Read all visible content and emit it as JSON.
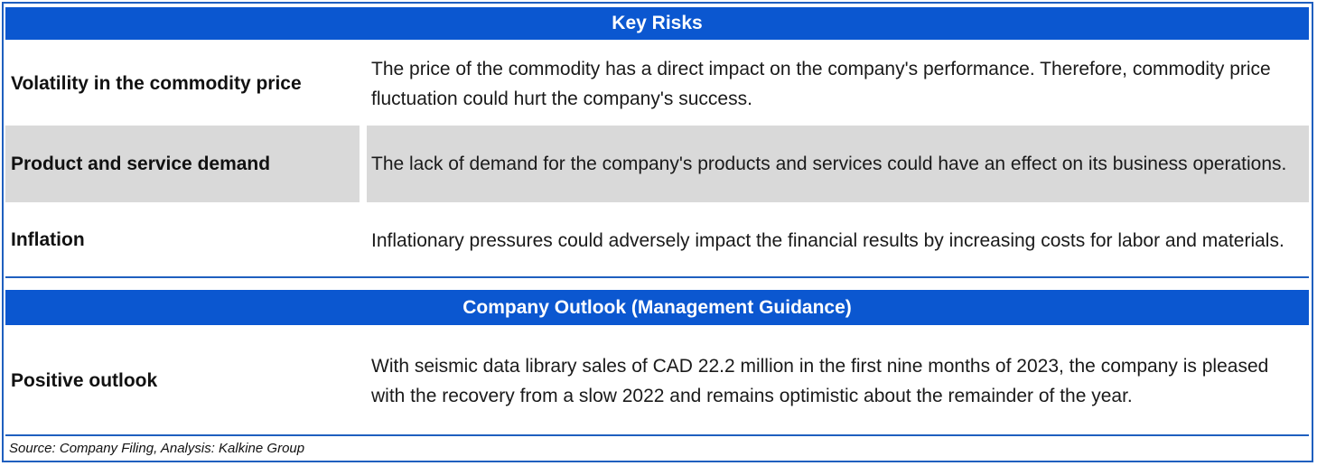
{
  "sections": [
    {
      "heading": "Key Risks",
      "rows": [
        {
          "label": "Volatility in the commodity price",
          "description": "The price of the commodity has a direct impact on the company's performance. Therefore, commodity price fluctuation could hurt the company's success."
        },
        {
          "label": "Product and service demand",
          "description": "The lack of demand for the company's products and services could have an effect on its business operations."
        },
        {
          "label": "Inflation",
          "description": "Inflationary pressures could adversely impact the financial results by increasing costs for labor and materials."
        }
      ]
    },
    {
      "heading": "Company Outlook (Management Guidance)",
      "rows": [
        {
          "label": "Positive outlook",
          "description": "With seismic data library sales of CAD 22.2 million in the first nine months of 2023, the company is pleased with the recovery from a slow 2022 and remains optimistic about the remainder of the year."
        }
      ]
    }
  ],
  "source": "Source: Company Filing, Analysis: Kalkine Group",
  "colors": {
    "header_bg": "#0b57d0",
    "header_text": "#ffffff",
    "shaded_row": "#d9d9d9",
    "rule": "#1f5fbf"
  }
}
